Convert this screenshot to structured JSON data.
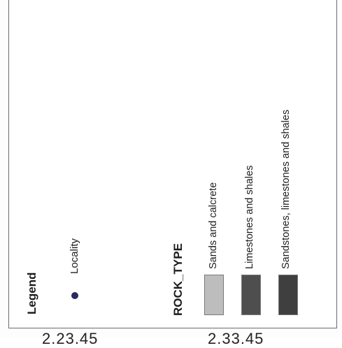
{
  "legend": {
    "title": "Legend",
    "locality": {
      "label": "Locality",
      "symbol": "dot-icon",
      "color": "#2a2a5e"
    }
  },
  "rock_type": {
    "title": "ROCK_TYPE",
    "items": [
      {
        "label": "Sands and calcrete",
        "color": "#bdbdbd"
      },
      {
        "label": "Limestones and shales",
        "color": "#4e4e4e"
      },
      {
        "label": "Sandstones, limestones and shales",
        "color": "#3f3f3f"
      }
    ]
  },
  "bottom_partial_labels": [
    {
      "text": "2.23.45"
    },
    {
      "text": "2.33.45"
    }
  ]
}
